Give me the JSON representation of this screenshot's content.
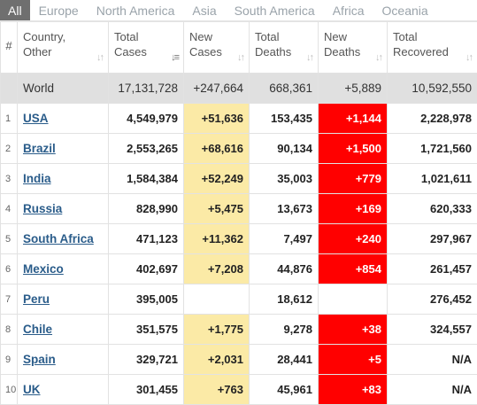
{
  "tabs": [
    "All",
    "Europe",
    "North America",
    "Asia",
    "South America",
    "Africa",
    "Oceania"
  ],
  "headers": {
    "index": "#",
    "country_line1": "Country,",
    "country_line2": "Other",
    "total_cases_line1": "Total",
    "total_cases_line2": "Cases",
    "new_cases_line1": "New",
    "new_cases_line2": "Cases",
    "total_deaths_line1": "Total",
    "total_deaths_line2": "Deaths",
    "new_deaths_line1": "New",
    "new_deaths_line2": "Deaths",
    "total_recovered_line1": "Total",
    "total_recovered_line2": "Recovered"
  },
  "world": {
    "country": "World",
    "total_cases": "17,131,728",
    "new_cases": "+247,664",
    "total_deaths": "668,361",
    "new_deaths": "+5,889",
    "total_recovered": "10,592,550"
  },
  "rows": [
    {
      "idx": "1",
      "country": "USA",
      "total_cases": "4,549,979",
      "new_cases": "+51,636",
      "total_deaths": "153,435",
      "new_deaths": "+1,144",
      "total_recovered": "2,228,978"
    },
    {
      "idx": "2",
      "country": "Brazil",
      "total_cases": "2,553,265",
      "new_cases": "+68,616",
      "total_deaths": "90,134",
      "new_deaths": "+1,500",
      "total_recovered": "1,721,560"
    },
    {
      "idx": "3",
      "country": "India",
      "total_cases": "1,584,384",
      "new_cases": "+52,249",
      "total_deaths": "35,003",
      "new_deaths": "+779",
      "total_recovered": "1,021,611"
    },
    {
      "idx": "4",
      "country": "Russia",
      "total_cases": "828,990",
      "new_cases": "+5,475",
      "total_deaths": "13,673",
      "new_deaths": "+169",
      "total_recovered": "620,333"
    },
    {
      "idx": "5",
      "country": "South Africa",
      "total_cases": "471,123",
      "new_cases": "+11,362",
      "total_deaths": "7,497",
      "new_deaths": "+240",
      "total_recovered": "297,967"
    },
    {
      "idx": "6",
      "country": "Mexico",
      "total_cases": "402,697",
      "new_cases": "+7,208",
      "total_deaths": "44,876",
      "new_deaths": "+854",
      "total_recovered": "261,457"
    },
    {
      "idx": "7",
      "country": "Peru",
      "total_cases": "395,005",
      "new_cases": "",
      "total_deaths": "18,612",
      "new_deaths": "",
      "total_recovered": "276,452"
    },
    {
      "idx": "8",
      "country": "Chile",
      "total_cases": "351,575",
      "new_cases": "+1,775",
      "total_deaths": "9,278",
      "new_deaths": "+38",
      "total_recovered": "324,557"
    },
    {
      "idx": "9",
      "country": "Spain",
      "total_cases": "329,721",
      "new_cases": "+2,031",
      "total_deaths": "28,441",
      "new_deaths": "+5",
      "total_recovered": "N/A"
    },
    {
      "idx": "10",
      "country": "UK",
      "total_cases": "301,455",
      "new_cases": "+763",
      "total_deaths": "45,961",
      "new_deaths": "+83",
      "total_recovered": "N/A"
    }
  ],
  "colors": {
    "new_cases_bg": "#fbeaa6",
    "new_deaths_bg": "#ff0000",
    "link": "#2a5c8a",
    "world_row_bg": "#e0e0e0",
    "active_tab_bg": "#6f6f6f"
  }
}
